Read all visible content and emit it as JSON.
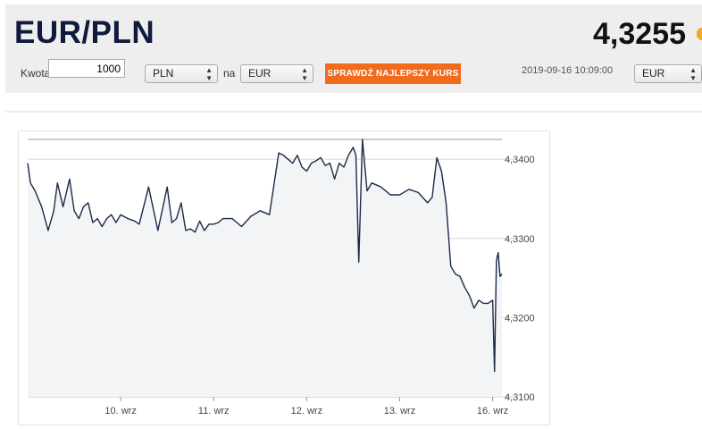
{
  "header": {
    "pair": "EUR/PLN",
    "rate": "4,3255"
  },
  "converter": {
    "amount_label": "Kwota",
    "amount_value": "1000",
    "from_currency": "PLN",
    "to_label": "na",
    "to_currency": "EUR",
    "cta_label": "SPRAWDŹ NAJLEPSZY KURS",
    "timestamp": "2019-09-16 10:09:00",
    "right_currency": "EUR"
  },
  "colors": {
    "line": "#1b2a4a",
    "fill": "#f3f4f6",
    "cta": "#f26b1d",
    "accent_dot": "#f5a623"
  },
  "chart_data": {
    "type": "line",
    "ylim": [
      4.31,
      4.3425
    ],
    "y_ticks": [
      "4,3100",
      "4,3200",
      "4,3300",
      "4,3400"
    ],
    "y_tick_values": [
      4.31,
      4.32,
      4.33,
      4.34
    ],
    "x_ticks": [
      "10. wrz",
      "11. wrz",
      "12. wrz",
      "13. wrz",
      "16. wrz"
    ],
    "x_tick_positions": [
      1.0,
      2.0,
      3.0,
      4.0,
      5.0
    ],
    "xlim": [
      0.0,
      5.1
    ],
    "grid": true,
    "series": [
      {
        "x": [
          0.0,
          0.03,
          0.08,
          0.15,
          0.22,
          0.28,
          0.32,
          0.38,
          0.45,
          0.5,
          0.55,
          0.6,
          0.65,
          0.7,
          0.75,
          0.8,
          0.85,
          0.9,
          0.95,
          1.0,
          1.08,
          1.15,
          1.2,
          1.3,
          1.4,
          1.5,
          1.55,
          1.6,
          1.65,
          1.7,
          1.75,
          1.8,
          1.85,
          1.9,
          1.95,
          2.0,
          2.05,
          2.1,
          2.2,
          2.3,
          2.4,
          2.5,
          2.6,
          2.7,
          2.75,
          2.8,
          2.85,
          2.9,
          2.95,
          3.0,
          3.05,
          3.1,
          3.15,
          3.2,
          3.25,
          3.3,
          3.35,
          3.4,
          3.45,
          3.5,
          3.53,
          3.56,
          3.6,
          3.65,
          3.7,
          3.8,
          3.9,
          4.0,
          4.1,
          4.2,
          4.3,
          4.35,
          4.4,
          4.45,
          4.5,
          4.55,
          4.6,
          4.65,
          4.7,
          4.75,
          4.8,
          4.85,
          4.9,
          4.95,
          5.0,
          5.02,
          5.04,
          5.06,
          5.08,
          5.1
        ],
        "y": [
          4.3395,
          4.337,
          4.336,
          4.334,
          4.331,
          4.3335,
          4.337,
          4.334,
          4.3375,
          4.3335,
          4.3325,
          4.334,
          4.3345,
          4.332,
          4.3325,
          4.3315,
          4.3325,
          4.333,
          4.332,
          4.333,
          4.3325,
          4.3322,
          4.3318,
          4.3365,
          4.331,
          4.3365,
          4.332,
          4.3325,
          4.3345,
          4.331,
          4.3312,
          4.3308,
          4.3322,
          4.331,
          4.3318,
          4.3318,
          4.332,
          4.3325,
          4.3325,
          4.3315,
          4.3328,
          4.3335,
          4.333,
          4.3408,
          4.3405,
          4.34,
          4.3395,
          4.3405,
          4.339,
          4.3385,
          4.3395,
          4.3398,
          4.3402,
          4.3392,
          4.3395,
          4.3375,
          4.3395,
          4.339,
          4.3405,
          4.3415,
          4.3405,
          4.327,
          4.3425,
          4.336,
          4.337,
          4.3365,
          4.3355,
          4.3355,
          4.3362,
          4.3358,
          4.3345,
          4.3352,
          4.3402,
          4.3385,
          4.3345,
          4.3265,
          4.3255,
          4.3252,
          4.3238,
          4.3228,
          4.3212,
          4.3222,
          4.3218,
          4.3218,
          4.3222,
          4.3132,
          4.3272,
          4.3282,
          4.3252,
          4.3255
        ]
      }
    ]
  }
}
